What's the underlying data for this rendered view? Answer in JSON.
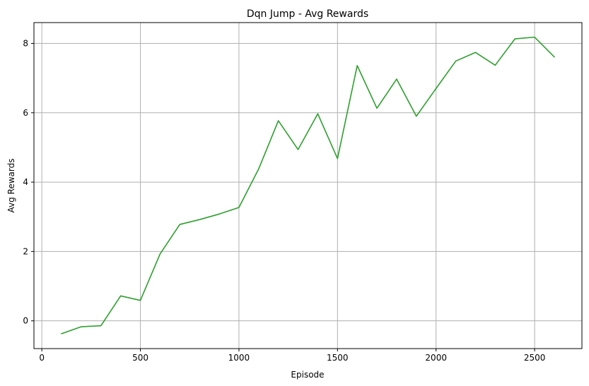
{
  "chart_data": {
    "type": "line",
    "title": "Dqn Jump - Avg Rewards",
    "xlabel": "Episode",
    "ylabel": "Avg Rewards",
    "xlim": [
      -40,
      2740
    ],
    "ylim": [
      -0.8,
      8.6
    ],
    "x_ticks": [
      0,
      500,
      1000,
      1500,
      2000,
      2500
    ],
    "y_ticks": [
      0,
      2,
      4,
      6,
      8
    ],
    "grid": true,
    "series": [
      {
        "color": "#2ca02c",
        "x": [
          100,
          200,
          300,
          400,
          500,
          600,
          700,
          800,
          900,
          1000,
          1100,
          1200,
          1300,
          1400,
          1500,
          1600,
          1700,
          1800,
          1900,
          2000,
          2100,
          2200,
          2300,
          2400,
          2500,
          2600
        ],
        "y": [
          -0.37,
          -0.17,
          -0.14,
          0.72,
          0.59,
          1.93,
          2.78,
          2.92,
          3.08,
          3.27,
          4.38,
          5.77,
          4.94,
          5.97,
          4.68,
          7.36,
          6.13,
          6.97,
          5.9,
          6.7,
          7.49,
          7.74,
          7.37,
          8.13,
          8.18,
          7.61
        ]
      }
    ]
  }
}
